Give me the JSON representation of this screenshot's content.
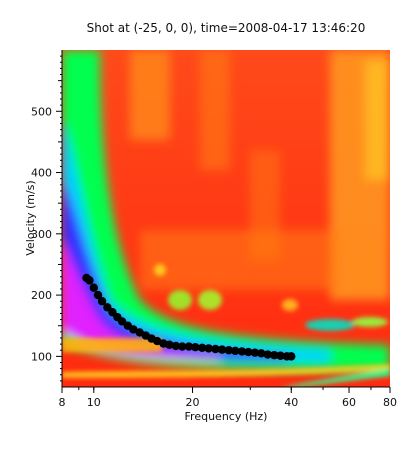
{
  "chart_data": {
    "type": "heatmap",
    "title": "Shot at (-25, 0, 0), time=2008-04-17 13:46:20",
    "xlabel": "Frequency (Hz)",
    "ylabel": "Velocity (m/s)",
    "x_scale": "log",
    "xlim": [
      8,
      80
    ],
    "ylim": [
      50,
      600
    ],
    "x_ticks": [
      8,
      10,
      20,
      40,
      60,
      80
    ],
    "x_tick_labels": [
      "8",
      "10",
      "20",
      "40",
      "60",
      "80"
    ],
    "y_ticks": [
      100,
      200,
      300,
      400,
      500
    ],
    "y_tick_labels": [
      "100",
      "200",
      "300",
      "400",
      "500"
    ],
    "colormap": [
      "#ff00ff",
      "#3333ff",
      "#00ccff",
      "#00ff66",
      "#ccff00",
      "#ffcc00",
      "#ff8800",
      "#ff3300"
    ],
    "picks": {
      "name": "",
      "color": "#000000",
      "points": [
        [
          9.5,
          228
        ],
        [
          9.7,
          224
        ],
        [
          10.0,
          212
        ],
        [
          10.3,
          200
        ],
        [
          10.6,
          190
        ],
        [
          11.0,
          180
        ],
        [
          11.4,
          172
        ],
        [
          11.8,
          164
        ],
        [
          12.2,
          157
        ],
        [
          12.7,
          150
        ],
        [
          13.2,
          144
        ],
        [
          13.8,
          139
        ],
        [
          14.4,
          134
        ],
        [
          15.0,
          129
        ],
        [
          15.6,
          125
        ],
        [
          16.3,
          121
        ],
        [
          17.0,
          119
        ],
        [
          17.8,
          117
        ],
        [
          18.6,
          116
        ],
        [
          19.5,
          116
        ],
        [
          20.4,
          115
        ],
        [
          21.4,
          114
        ],
        [
          22.4,
          113
        ],
        [
          23.5,
          112
        ],
        [
          24.6,
          111
        ],
        [
          25.8,
          110
        ],
        [
          27.0,
          109
        ],
        [
          28.3,
          108
        ],
        [
          29.6,
          107
        ],
        [
          31.0,
          106
        ],
        [
          32.4,
          105
        ],
        [
          33.9,
          103
        ],
        [
          35.5,
          102
        ],
        [
          37.1,
          101
        ],
        [
          38.8,
          100
        ],
        [
          40.0,
          100
        ]
      ]
    }
  }
}
